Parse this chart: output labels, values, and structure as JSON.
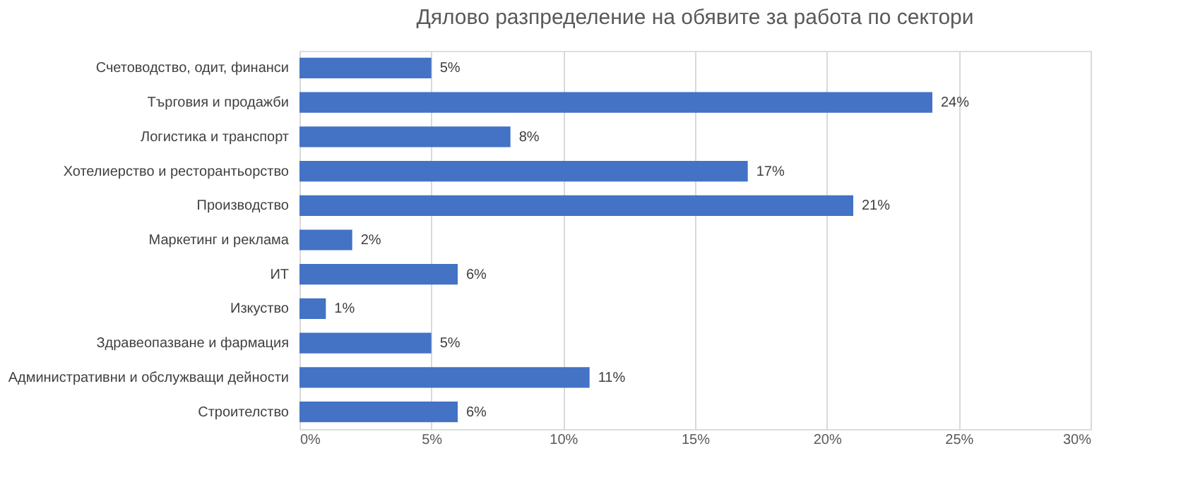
{
  "chart_data": {
    "type": "bar",
    "orientation": "horizontal",
    "title": "Дялово разпределение на обявите за работа по сектори",
    "categories": [
      "Счетоводство, одит, финанси",
      "Търговия и продажби",
      "Логистика и транспорт",
      "Хотелиерство и ресторантьорство",
      "Производство",
      "Маркетинг и реклама",
      "ИТ",
      "Изкуство",
      "Здравеопазване и фармация",
      "Административни и обслужващи дейности",
      "Строителство"
    ],
    "values": [
      5,
      24,
      8,
      17,
      21,
      2,
      6,
      1,
      5,
      11,
      6
    ],
    "value_labels": [
      "5%",
      "24%",
      "8%",
      "17%",
      "21%",
      "2%",
      "6%",
      "1%",
      "5%",
      "11%",
      "6%"
    ],
    "color": "#4472c4",
    "xlim": [
      0,
      30
    ],
    "xticks": [
      {
        "value": 0,
        "label": "0%"
      },
      {
        "value": 5,
        "label": "5%"
      },
      {
        "value": 10,
        "label": "10%"
      },
      {
        "value": 15,
        "label": "15%"
      },
      {
        "value": 20,
        "label": "20%"
      },
      {
        "value": 25,
        "label": "25%"
      },
      {
        "value": 30,
        "label": "30%"
      }
    ],
    "grid": "x"
  }
}
